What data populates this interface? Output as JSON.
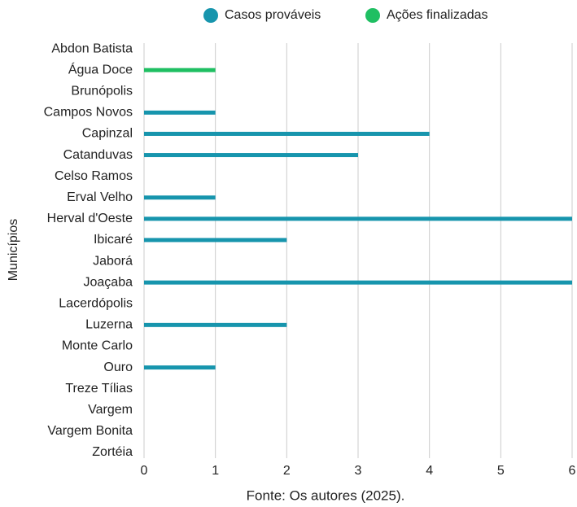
{
  "chart_data": {
    "type": "bar",
    "orientation": "horizontal",
    "y_label": "Municípios",
    "source": "Fonte: Os autores (2025).",
    "categories": [
      "Abdon Batista",
      "Água Doce",
      "Brunópolis",
      "Campos Novos",
      "Capinzal",
      "Catanduvas",
      "Celso Ramos",
      "Erval Velho",
      "Herval d'Oeste",
      "Ibicaré",
      "Jaborá",
      "Joaçaba",
      "Lacerdópolis",
      "Luzerna",
      "Monte Carlo",
      "Ouro",
      "Treze Tílias",
      "Vargem",
      "Vargem Bonita",
      "Zortéia"
    ],
    "series": [
      {
        "name": "Casos prováveis",
        "color": "#1795ad",
        "values": [
          0,
          0,
          0,
          1,
          4,
          3,
          0,
          1,
          6,
          2,
          0,
          6,
          0,
          2,
          0,
          1,
          0,
          0,
          0,
          0
        ]
      },
      {
        "name": "Ações finalizadas",
        "color": "#1fbf62",
        "values": [
          0,
          1,
          0,
          0,
          0,
          0,
          0,
          0,
          0,
          0,
          0,
          0,
          0,
          0,
          0,
          0,
          0,
          0,
          0,
          0
        ]
      }
    ],
    "xlim": [
      0,
      6
    ],
    "xticks": [
      0,
      1,
      2,
      3,
      4,
      5,
      6
    ],
    "grid": true,
    "legend": "top"
  }
}
